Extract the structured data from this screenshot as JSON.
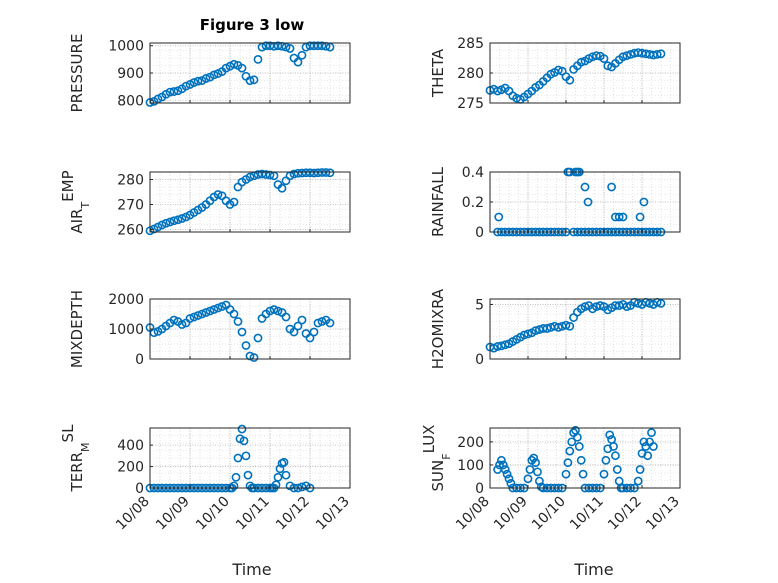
{
  "figure": {
    "title": "Figure 3 low",
    "xlabel": "Time",
    "marker_color": "#0072BD",
    "time_ticks": [
      "10/08",
      "10/09",
      "10/10",
      "10/11",
      "10/12",
      "10/13"
    ]
  },
  "chart_data": [
    {
      "type": "scatter",
      "panel": "PRESSURE",
      "ylabel": "PRESSURE",
      "ylim": [
        790,
        1010
      ],
      "yticks": [
        800,
        900,
        1000
      ],
      "xlim": [
        0,
        5
      ],
      "x": [
        0.0,
        0.1,
        0.2,
        0.3,
        0.4,
        0.5,
        0.6,
        0.7,
        0.8,
        0.9,
        1.0,
        1.1,
        1.2,
        1.3,
        1.4,
        1.5,
        1.6,
        1.7,
        1.8,
        1.9,
        2.0,
        2.1,
        2.2,
        2.3,
        2.4,
        2.5,
        2.6,
        2.7,
        2.8,
        2.9,
        3.0,
        3.1,
        3.2,
        3.3,
        3.4,
        3.5,
        3.6,
        3.7,
        3.8,
        3.9,
        4.0,
        4.1,
        4.2,
        4.3,
        4.4,
        4.5
      ],
      "y": [
        792,
        796,
        805,
        812,
        822,
        830,
        832,
        835,
        842,
        852,
        858,
        865,
        870,
        872,
        880,
        885,
        893,
        898,
        905,
        918,
        925,
        932,
        928,
        918,
        888,
        872,
        875,
        950,
        995,
        1000,
        1000,
        998,
        1000,
        998,
        995,
        990,
        955,
        940,
        965,
        995,
        1000,
        1000,
        1000,
        1000,
        998,
        995
      ],
      "grid": true
    },
    {
      "type": "scatter",
      "panel": "THETA",
      "ylabel": "THETA",
      "ylim": [
        275,
        285
      ],
      "yticks": [
        275,
        280,
        285
      ],
      "xlim": [
        0,
        5
      ],
      "x": [
        0.0,
        0.1,
        0.2,
        0.3,
        0.4,
        0.5,
        0.6,
        0.7,
        0.8,
        0.9,
        1.0,
        1.1,
        1.2,
        1.3,
        1.4,
        1.5,
        1.6,
        1.7,
        1.8,
        1.9,
        2.0,
        2.1,
        2.2,
        2.3,
        2.4,
        2.5,
        2.6,
        2.7,
        2.8,
        2.9,
        3.0,
        3.1,
        3.2,
        3.3,
        3.4,
        3.5,
        3.6,
        3.7,
        3.8,
        3.9,
        4.0,
        4.1,
        4.2,
        4.3,
        4.4,
        4.5
      ],
      "y": [
        277.1,
        277.3,
        277.0,
        277.2,
        277.5,
        277.0,
        276.2,
        275.8,
        275.6,
        276.0,
        276.5,
        277.0,
        277.6,
        278.0,
        278.6,
        279.2,
        279.8,
        280.1,
        280.5,
        280.3,
        279.4,
        278.8,
        280.6,
        281.2,
        281.8,
        282.0,
        282.4,
        282.7,
        282.9,
        282.8,
        282.4,
        281.2,
        281.0,
        281.6,
        282.2,
        282.7,
        282.9,
        283.1,
        283.3,
        283.4,
        283.3,
        283.2,
        283.1,
        283.0,
        283.1,
        283.2
      ],
      "grid": true
    },
    {
      "type": "scatter",
      "panel": "AIR_TEMP",
      "ylabel": "AIR_TEMP",
      "ylim": [
        259,
        283
      ],
      "yticks": [
        260,
        270,
        280
      ],
      "xlim": [
        0,
        5
      ],
      "x": [
        0.0,
        0.1,
        0.2,
        0.3,
        0.4,
        0.5,
        0.6,
        0.7,
        0.8,
        0.9,
        1.0,
        1.1,
        1.2,
        1.3,
        1.4,
        1.5,
        1.6,
        1.7,
        1.8,
        1.9,
        2.0,
        2.1,
        2.2,
        2.3,
        2.4,
        2.5,
        2.6,
        2.7,
        2.8,
        2.9,
        3.0,
        3.1,
        3.2,
        3.3,
        3.4,
        3.5,
        3.6,
        3.7,
        3.8,
        3.9,
        4.0,
        4.1,
        4.2,
        4.3,
        4.4,
        4.5
      ],
      "y": [
        259.5,
        260.2,
        261.0,
        261.8,
        262.5,
        263.0,
        263.5,
        263.9,
        264.4,
        265.0,
        265.8,
        266.8,
        267.8,
        268.8,
        270.0,
        271.5,
        273.0,
        274.0,
        273.5,
        271.5,
        270.0,
        271.0,
        277.0,
        279.0,
        280.0,
        281.0,
        281.5,
        282.0,
        282.2,
        282.0,
        281.8,
        281.5,
        278.0,
        276.5,
        279.5,
        281.5,
        282.2,
        282.5,
        282.6,
        282.7,
        282.7,
        282.6,
        282.7,
        282.8,
        282.8,
        282.7
      ],
      "grid": true
    },
    {
      "type": "scatter",
      "panel": "RAINFALL",
      "ylabel": "RAINFALL",
      "ylim": [
        0,
        0.4
      ],
      "yticks": [
        0,
        0.2,
        0.4
      ],
      "xlim": [
        0,
        5
      ],
      "x": [
        0.2,
        0.3,
        0.4,
        0.5,
        0.6,
        0.7,
        0.8,
        0.9,
        1.0,
        1.1,
        1.2,
        1.3,
        1.4,
        1.5,
        1.6,
        1.7,
        1.8,
        1.9,
        2.0,
        2.05,
        2.1,
        2.2,
        2.3,
        2.4,
        2.5,
        2.6,
        2.7,
        2.8,
        2.9,
        3.0,
        3.1,
        3.2,
        3.3,
        3.4,
        3.5,
        3.6,
        3.7,
        3.8,
        3.9,
        4.0,
        4.1,
        4.2,
        4.3,
        4.4,
        4.5,
        0.23,
        2.25,
        2.3,
        2.35,
        2.5,
        2.58,
        3.2,
        3.3,
        3.4,
        3.5,
        3.95,
        4.05
      ],
      "y": [
        0,
        0,
        0,
        0,
        0,
        0,
        0,
        0,
        0,
        0,
        0,
        0,
        0,
        0,
        0,
        0,
        0,
        0,
        0,
        0.4,
        0.4,
        0,
        0,
        0,
        0,
        0,
        0,
        0,
        0,
        0,
        0,
        0,
        0,
        0,
        0,
        0,
        0,
        0,
        0,
        0,
        0,
        0,
        0,
        0,
        0,
        0.1,
        0.4,
        0.4,
        0.4,
        0.3,
        0.2,
        0.3,
        0.1,
        0.1,
        0.1,
        0.1,
        0.2
      ],
      "grid": true
    },
    {
      "type": "scatter",
      "panel": "MIXDEPTH",
      "ylabel": "MIXDEPTH",
      "ylim": [
        0,
        2000
      ],
      "yticks": [
        0,
        1000,
        2000
      ],
      "xlim": [
        0,
        5
      ],
      "x": [
        0.0,
        0.1,
        0.2,
        0.3,
        0.4,
        0.5,
        0.6,
        0.7,
        0.8,
        0.9,
        1.0,
        1.1,
        1.2,
        1.3,
        1.4,
        1.5,
        1.6,
        1.7,
        1.8,
        1.9,
        2.0,
        2.1,
        2.2,
        2.3,
        2.4,
        2.5,
        2.6,
        2.7,
        2.8,
        2.9,
        3.0,
        3.1,
        3.2,
        3.3,
        3.4,
        3.5,
        3.6,
        3.7,
        3.8,
        3.9,
        4.0,
        4.1,
        4.2,
        4.3,
        4.4,
        4.5
      ],
      "y": [
        1050,
        880,
        920,
        1000,
        1100,
        1200,
        1300,
        1250,
        1150,
        1200,
        1350,
        1400,
        1450,
        1500,
        1550,
        1600,
        1650,
        1700,
        1750,
        1800,
        1650,
        1500,
        1250,
        900,
        450,
        100,
        50,
        700,
        1350,
        1500,
        1600,
        1650,
        1600,
        1550,
        1400,
        1000,
        900,
        1100,
        1300,
        850,
        700,
        900,
        1200,
        1250,
        1300,
        1200
      ],
      "grid": true
    },
    {
      "type": "scatter",
      "panel": "H2OMIXRA",
      "ylabel": "H2OMIXRA",
      "ylim": [
        0,
        5.5
      ],
      "yticks": [
        0,
        5
      ],
      "xlim": [
        0,
        5
      ],
      "x": [
        0.0,
        0.1,
        0.2,
        0.3,
        0.4,
        0.5,
        0.6,
        0.7,
        0.8,
        0.9,
        1.0,
        1.1,
        1.2,
        1.3,
        1.4,
        1.5,
        1.6,
        1.7,
        1.8,
        1.9,
        2.0,
        2.1,
        2.2,
        2.3,
        2.4,
        2.5,
        2.6,
        2.7,
        2.8,
        2.9,
        3.0,
        3.1,
        3.2,
        3.3,
        3.4,
        3.5,
        3.6,
        3.7,
        3.8,
        3.9,
        4.0,
        4.1,
        4.2,
        4.3,
        4.4,
        4.5
      ],
      "y": [
        1.1,
        1.0,
        1.15,
        1.2,
        1.3,
        1.4,
        1.6,
        1.8,
        2.0,
        2.2,
        2.3,
        2.4,
        2.6,
        2.7,
        2.8,
        2.8,
        2.9,
        3.0,
        2.9,
        3.0,
        3.1,
        3.0,
        3.8,
        4.3,
        4.6,
        4.8,
        4.9,
        4.6,
        4.8,
        4.9,
        4.8,
        4.5,
        4.7,
        4.9,
        4.9,
        5.0,
        4.8,
        4.9,
        5.2,
        5.1,
        5.0,
        5.2,
        5.1,
        5.0,
        5.2,
        5.1
      ],
      "grid": true
    },
    {
      "type": "scatter",
      "panel": "TERR_MSL",
      "ylabel": "TERR_MSL",
      "ylim": [
        0,
        560
      ],
      "yticks": [
        0,
        200,
        400
      ],
      "xlim": [
        0,
        5
      ],
      "x": [
        0.0,
        0.1,
        0.2,
        0.3,
        0.4,
        0.5,
        0.6,
        0.7,
        0.8,
        0.9,
        1.0,
        1.1,
        1.2,
        1.3,
        1.4,
        1.5,
        1.6,
        1.7,
        1.8,
        1.9,
        2.0,
        2.05,
        2.1,
        2.15,
        2.2,
        2.25,
        2.3,
        2.35,
        2.4,
        2.45,
        2.5,
        2.55,
        2.6,
        2.7,
        2.8,
        2.9,
        3.0,
        3.05,
        3.1,
        3.15,
        3.2,
        3.25,
        3.3,
        3.35,
        3.4,
        3.5,
        3.6,
        3.7,
        3.8,
        3.9,
        4.0
      ],
      "y": [
        0,
        0,
        0,
        0,
        0,
        0,
        0,
        0,
        0,
        0,
        0,
        0,
        0,
        0,
        0,
        0,
        0,
        0,
        0,
        0,
        0,
        0,
        20,
        100,
        280,
        460,
        550,
        440,
        300,
        120,
        20,
        0,
        0,
        0,
        0,
        0,
        0,
        0,
        0,
        30,
        100,
        180,
        230,
        240,
        120,
        20,
        0,
        0,
        10,
        20,
        0
      ],
      "grid": true
    },
    {
      "type": "scatter",
      "panel": "SUN_FLUX",
      "ylabel": "SUN_FLUX",
      "ylim": [
        0,
        260
      ],
      "yticks": [
        0,
        100,
        200
      ],
      "xlim": [
        0,
        5
      ],
      "x": [
        0.2,
        0.25,
        0.3,
        0.35,
        0.4,
        0.45,
        0.5,
        0.55,
        0.6,
        0.7,
        0.8,
        0.9,
        1.0,
        1.05,
        1.1,
        1.15,
        1.2,
        1.25,
        1.3,
        1.35,
        1.4,
        1.5,
        1.6,
        1.7,
        1.8,
        1.9,
        2.0,
        2.05,
        2.1,
        2.15,
        2.2,
        2.25,
        2.3,
        2.35,
        2.4,
        2.45,
        2.5,
        2.6,
        2.7,
        2.8,
        2.9,
        3.0,
        3.05,
        3.1,
        3.15,
        3.2,
        3.25,
        3.3,
        3.35,
        3.4,
        3.45,
        3.5,
        3.6,
        3.7,
        3.8,
        3.9,
        3.95,
        4.0,
        4.05,
        4.1,
        4.15,
        4.2,
        4.25,
        4.3
      ],
      "y": [
        80,
        100,
        120,
        100,
        80,
        60,
        40,
        20,
        0,
        0,
        0,
        0,
        40,
        80,
        120,
        130,
        110,
        70,
        30,
        5,
        0,
        0,
        0,
        0,
        0,
        0,
        60,
        110,
        160,
        200,
        240,
        250,
        220,
        180,
        120,
        60,
        0,
        0,
        0,
        0,
        0,
        60,
        120,
        170,
        230,
        210,
        180,
        140,
        80,
        30,
        0,
        0,
        0,
        0,
        0,
        30,
        80,
        150,
        200,
        180,
        140,
        200,
        240,
        180
      ],
      "grid": true
    }
  ],
  "panels": [
    {
      "ylabel_main": "PRESSURE",
      "ylabel_sub": ""
    },
    {
      "ylabel_main": "THETA",
      "ylabel_sub": ""
    },
    {
      "ylabel_main": "AIR",
      "ylabel_sub": "T",
      "ylabel_rest": "EMP"
    },
    {
      "ylabel_main": "RAINFALL",
      "ylabel_sub": ""
    },
    {
      "ylabel_main": "MIXDEPTH",
      "ylabel_sub": ""
    },
    {
      "ylabel_main": "H2OMIXRA",
      "ylabel_sub": ""
    },
    {
      "ylabel_main": "TERR",
      "ylabel_sub": "M",
      "ylabel_rest": "SL"
    },
    {
      "ylabel_main": "SUN",
      "ylabel_sub": "F",
      "ylabel_rest": "LUX"
    }
  ]
}
